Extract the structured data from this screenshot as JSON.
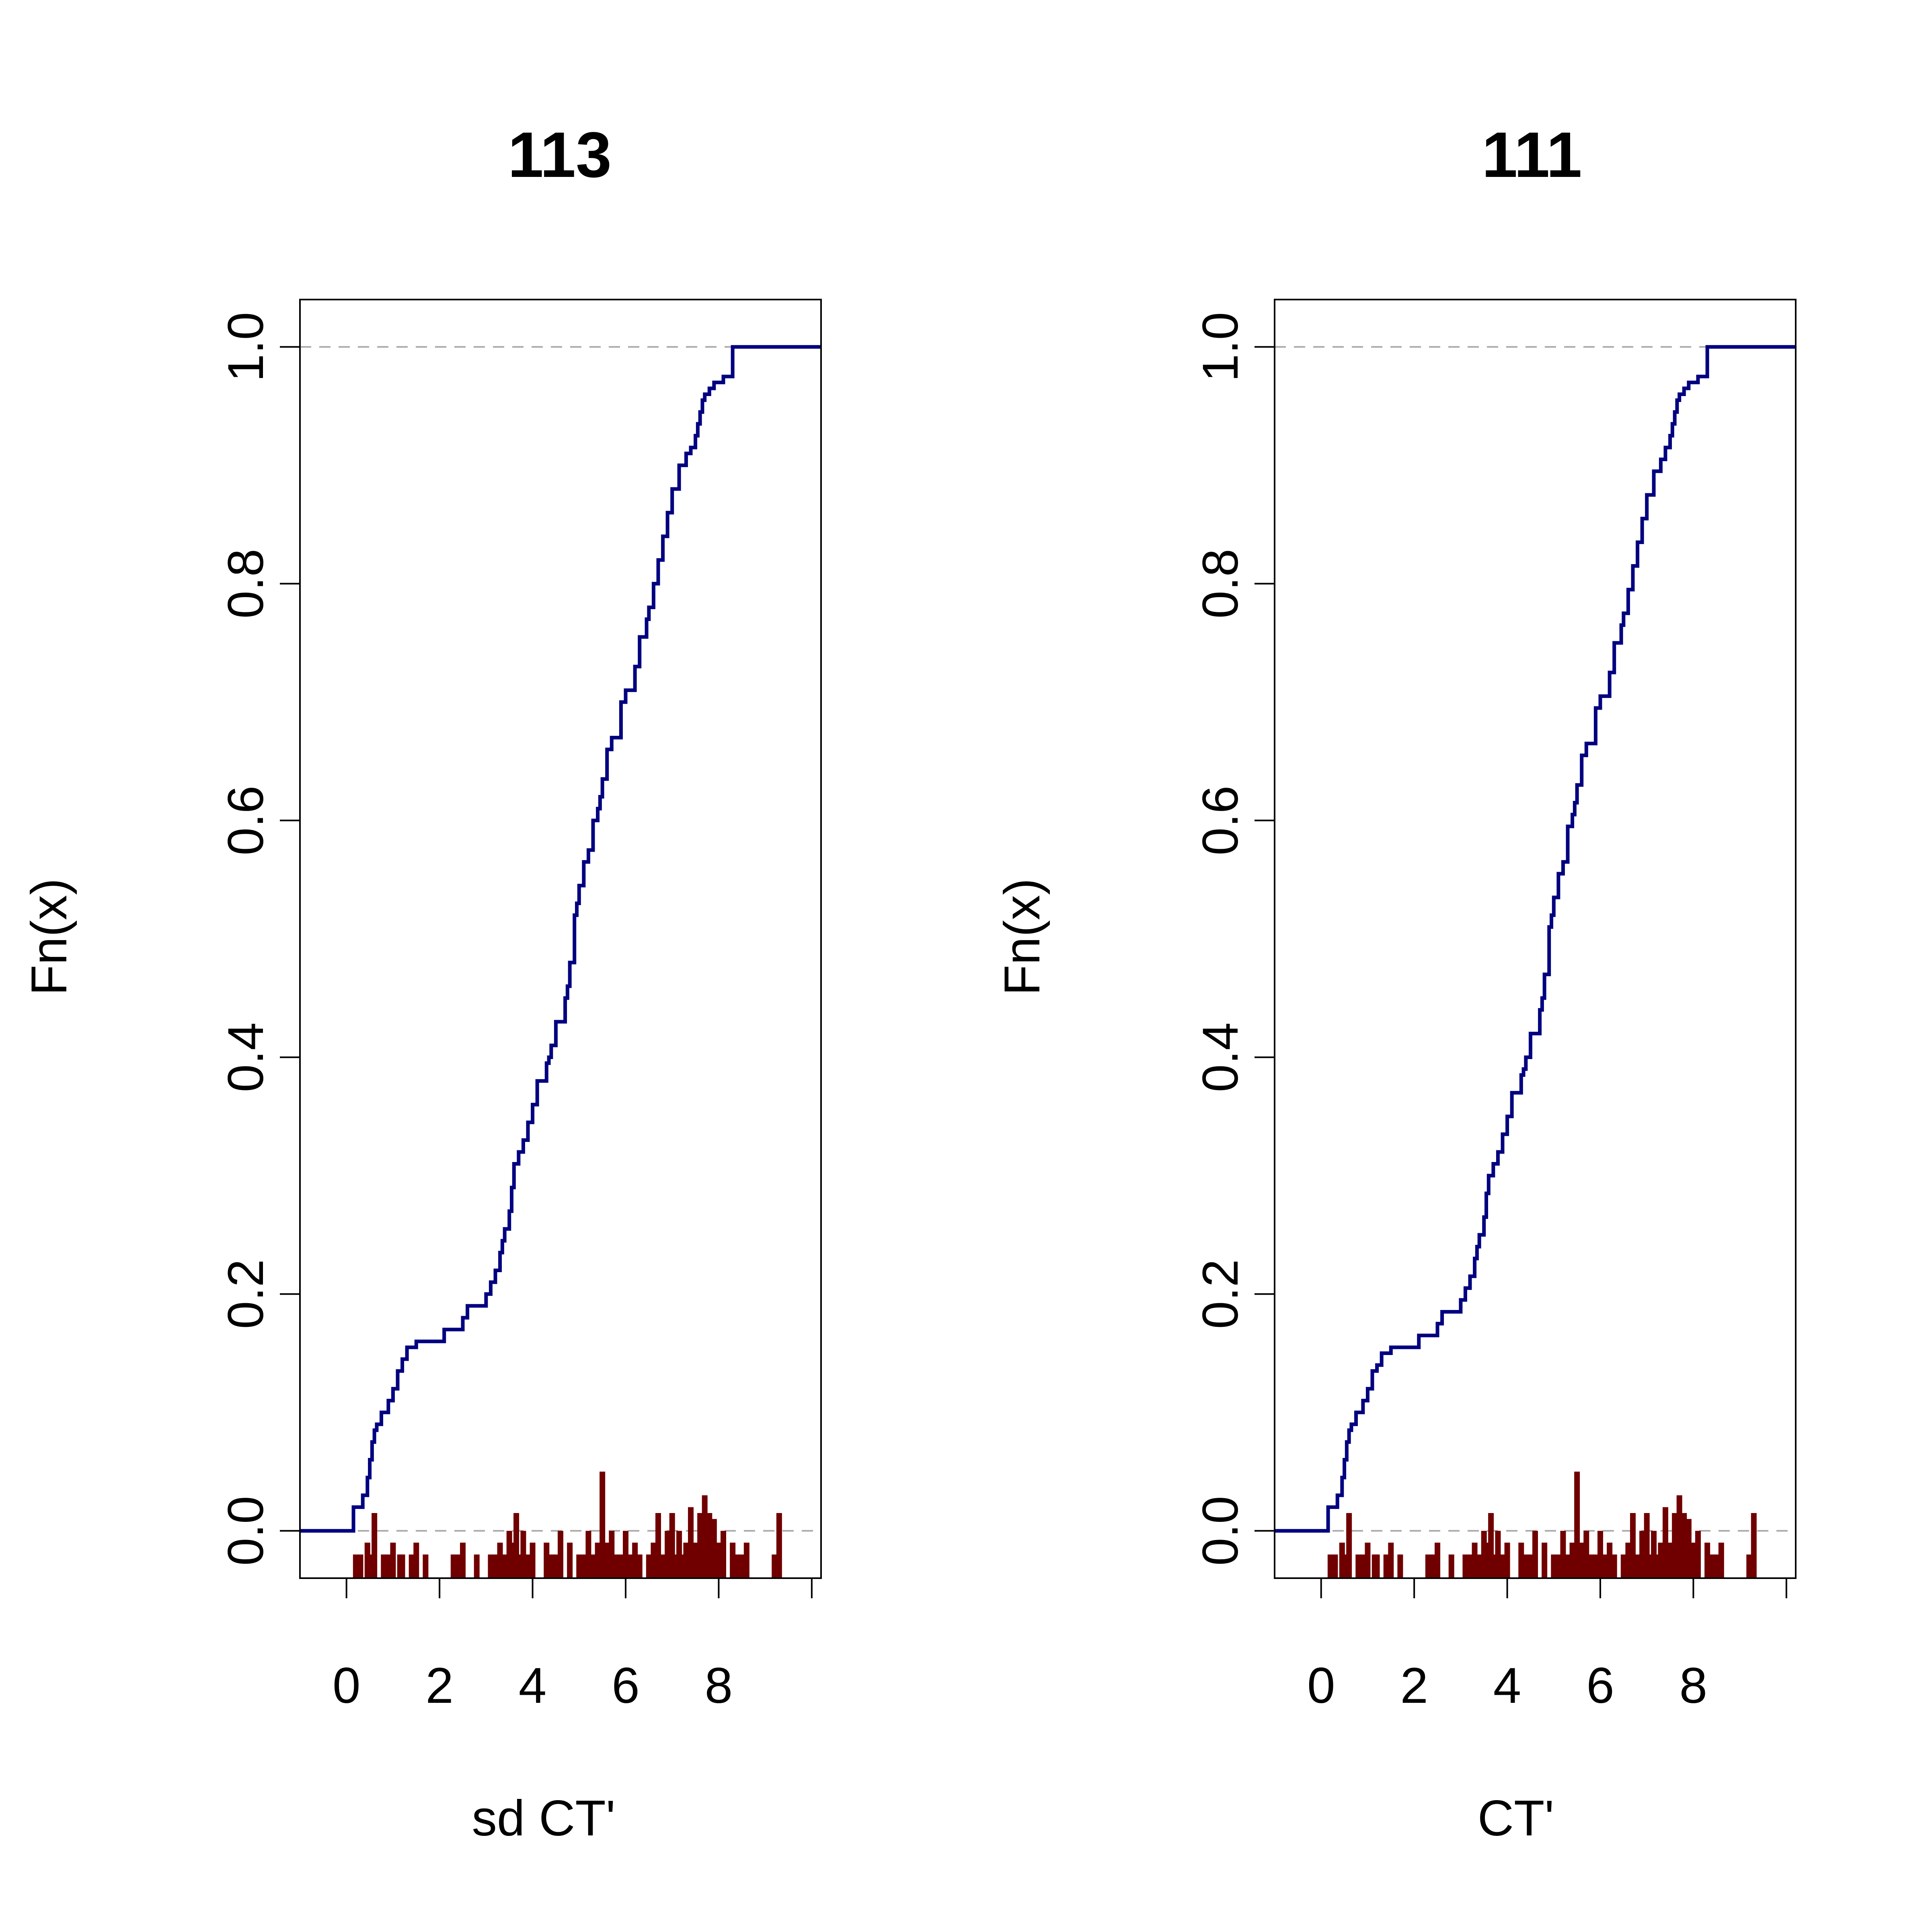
{
  "colors": {
    "ecdf_line": "#000080",
    "rug_bars": "#700000",
    "reference_lines": "#aaaaaa",
    "axes": "#000000",
    "background": "#ffffff"
  },
  "chart_data": [
    {
      "type": "line",
      "subtype": "ecdf-step",
      "title": "113",
      "xlabel": "sd CT'",
      "ylabel": "Fn(x)",
      "xlim": [
        -1.0,
        10.2
      ],
      "ylim": [
        -0.04,
        1.04
      ],
      "x_ticks": [
        0,
        2,
        4,
        6,
        8,
        10
      ],
      "x_tick_labels": [
        "0",
        "2",
        "4",
        "6",
        "8",
        ""
      ],
      "y_ticks": [
        0.0,
        0.2,
        0.4,
        0.6,
        0.8,
        1.0
      ],
      "y_tick_labels": [
        "0.0",
        "0.2",
        "0.4",
        "0.6",
        "0.8",
        "1.0"
      ],
      "reference_lines_y": [
        0.0,
        1.0
      ],
      "grid": false,
      "legend": "none",
      "ecdf": {
        "x": [
          -1.0,
          0.15,
          0.35,
          0.45,
          0.5,
          0.55,
          0.6,
          0.65,
          0.75,
          0.9,
          1.0,
          1.1,
          1.2,
          1.3,
          1.4,
          1.5,
          1.7,
          2.1,
          2.5,
          2.6,
          2.7,
          3.0,
          3.1,
          3.2,
          3.3,
          3.35,
          3.4,
          3.5,
          3.55,
          3.6,
          3.7,
          3.8,
          3.9,
          4.0,
          4.1,
          4.3,
          4.35,
          4.4,
          4.5,
          4.7,
          4.75,
          4.8,
          4.9,
          4.95,
          5.0,
          5.1,
          5.2,
          5.3,
          5.4,
          5.45,
          5.5,
          5.6,
          5.7,
          5.9,
          6.0,
          6.2,
          6.3,
          6.45,
          6.5,
          6.6,
          6.7,
          6.8,
          6.9,
          7.0,
          7.15,
          7.3,
          7.4,
          7.5,
          7.55,
          7.6,
          7.65,
          7.7,
          7.8,
          7.9,
          8.1,
          8.3,
          8.4,
          8.5,
          8.7,
          9.0,
          9.15,
          9.2,
          10.2
        ],
        "y": [
          0.0,
          0.02,
          0.03,
          0.045,
          0.06,
          0.075,
          0.085,
          0.09,
          0.1,
          0.11,
          0.12,
          0.135,
          0.145,
          0.155,
          0.155,
          0.16,
          0.16,
          0.17,
          0.18,
          0.19,
          0.19,
          0.2,
          0.21,
          0.22,
          0.235,
          0.245,
          0.255,
          0.27,
          0.29,
          0.31,
          0.32,
          0.33,
          0.345,
          0.36,
          0.38,
          0.395,
          0.4,
          0.41,
          0.43,
          0.45,
          0.46,
          0.48,
          0.52,
          0.53,
          0.545,
          0.565,
          0.575,
          0.6,
          0.61,
          0.62,
          0.635,
          0.66,
          0.67,
          0.7,
          0.71,
          0.73,
          0.755,
          0.77,
          0.78,
          0.8,
          0.82,
          0.84,
          0.86,
          0.88,
          0.9,
          0.91,
          0.915,
          0.925,
          0.935,
          0.945,
          0.955,
          0.96,
          0.965,
          0.97,
          0.975,
          1.0,
          1.0,
          1.0,
          1.0,
          1.0,
          1.0,
          1.0,
          1.0
        ]
      },
      "rug": {
        "x": [
          0.2,
          0.3,
          0.45,
          0.5,
          0.6,
          0.8,
          0.9,
          1.0,
          1.15,
          1.2,
          1.4,
          1.5,
          1.7,
          2.3,
          2.4,
          2.5,
          2.8,
          3.1,
          3.2,
          3.3,
          3.4,
          3.5,
          3.6,
          3.65,
          3.7,
          3.8,
          3.9,
          4.0,
          4.3,
          4.4,
          4.5,
          4.6,
          4.8,
          5.0,
          5.1,
          5.2,
          5.3,
          5.4,
          5.5,
          5.6,
          5.7,
          5.8,
          5.9,
          6.0,
          6.1,
          6.2,
          6.3,
          6.5,
          6.6,
          6.7,
          6.8,
          6.9,
          7.0,
          7.1,
          7.15,
          7.2,
          7.3,
          7.4,
          7.5,
          7.6,
          7.7,
          7.8,
          7.9,
          8.0,
          8.1,
          8.3,
          8.4,
          8.5,
          8.6,
          9.2,
          9.3
        ],
        "heights": [
          0.02,
          0.02,
          0.03,
          0.02,
          0.055,
          0.02,
          0.02,
          0.03,
          0.02,
          0.02,
          0.02,
          0.03,
          0.02,
          0.02,
          0.02,
          0.03,
          0.02,
          0.02,
          0.02,
          0.03,
          0.02,
          0.04,
          0.03,
          0.055,
          0.02,
          0.04,
          0.02,
          0.03,
          0.03,
          0.02,
          0.02,
          0.04,
          0.03,
          0.02,
          0.02,
          0.04,
          0.02,
          0.03,
          0.09,
          0.03,
          0.04,
          0.02,
          0.02,
          0.04,
          0.02,
          0.03,
          0.02,
          0.02,
          0.03,
          0.055,
          0.02,
          0.04,
          0.055,
          0.02,
          0.04,
          0.02,
          0.03,
          0.06,
          0.03,
          0.055,
          0.07,
          0.055,
          0.05,
          0.03,
          0.04,
          0.03,
          0.02,
          0.02,
          0.03,
          0.02,
          0.055
        ]
      }
    },
    {
      "type": "line",
      "subtype": "ecdf-step",
      "title": "111",
      "xlabel": "CT'",
      "ylabel": "Fn(x)",
      "xlim": [
        -1.0,
        10.2
      ],
      "ylim": [
        -0.04,
        1.04
      ],
      "x_ticks": [
        0,
        2,
        4,
        6,
        8,
        10
      ],
      "x_tick_labels": [
        "0",
        "2",
        "4",
        "6",
        "8",
        ""
      ],
      "y_ticks": [
        0.0,
        0.2,
        0.4,
        0.6,
        0.8,
        1.0
      ],
      "y_tick_labels": [
        "0.0",
        "0.2",
        "0.4",
        "0.6",
        "0.8",
        "1.0"
      ],
      "reference_lines_y": [
        0.0,
        1.0
      ],
      "grid": false,
      "legend": "none",
      "ecdf": {
        "x": [
          -1.0,
          0.15,
          0.35,
          0.45,
          0.5,
          0.55,
          0.6,
          0.65,
          0.75,
          0.9,
          1.0,
          1.1,
          1.2,
          1.3,
          1.4,
          1.5,
          1.7,
          2.1,
          2.5,
          2.6,
          2.7,
          3.0,
          3.1,
          3.2,
          3.3,
          3.35,
          3.4,
          3.5,
          3.55,
          3.6,
          3.7,
          3.8,
          3.9,
          4.0,
          4.1,
          4.3,
          4.35,
          4.4,
          4.5,
          4.7,
          4.75,
          4.8,
          4.9,
          4.95,
          5.0,
          5.1,
          5.2,
          5.3,
          5.4,
          5.45,
          5.5,
          5.6,
          5.7,
          5.9,
          6.0,
          6.2,
          6.3,
          6.45,
          6.5,
          6.6,
          6.7,
          6.8,
          6.9,
          7.0,
          7.15,
          7.3,
          7.4,
          7.5,
          7.55,
          7.6,
          7.65,
          7.7,
          7.8,
          7.9,
          8.1,
          8.3,
          8.4,
          8.5,
          8.7,
          9.0,
          9.15,
          9.2,
          10.2
        ],
        "y": [
          0.0,
          0.02,
          0.03,
          0.045,
          0.06,
          0.075,
          0.085,
          0.09,
          0.1,
          0.11,
          0.12,
          0.135,
          0.14,
          0.15,
          0.15,
          0.155,
          0.155,
          0.165,
          0.175,
          0.185,
          0.185,
          0.195,
          0.205,
          0.215,
          0.23,
          0.24,
          0.25,
          0.265,
          0.285,
          0.3,
          0.31,
          0.32,
          0.335,
          0.35,
          0.37,
          0.385,
          0.39,
          0.4,
          0.42,
          0.44,
          0.45,
          0.47,
          0.51,
          0.52,
          0.535,
          0.555,
          0.565,
          0.595,
          0.605,
          0.615,
          0.63,
          0.655,
          0.665,
          0.695,
          0.705,
          0.725,
          0.75,
          0.765,
          0.775,
          0.795,
          0.815,
          0.835,
          0.855,
          0.875,
          0.895,
          0.905,
          0.915,
          0.925,
          0.935,
          0.945,
          0.955,
          0.96,
          0.965,
          0.97,
          0.975,
          1.0,
          1.0,
          1.0,
          1.0,
          1.0,
          1.0,
          1.0,
          1.0
        ]
      },
      "rug": {
        "x": [
          0.2,
          0.3,
          0.45,
          0.5,
          0.6,
          0.8,
          0.9,
          1.0,
          1.15,
          1.2,
          1.4,
          1.5,
          1.7,
          2.3,
          2.4,
          2.5,
          2.8,
          3.1,
          3.2,
          3.3,
          3.4,
          3.5,
          3.6,
          3.65,
          3.7,
          3.8,
          3.9,
          4.0,
          4.3,
          4.4,
          4.5,
          4.6,
          4.8,
          5.0,
          5.1,
          5.2,
          5.3,
          5.4,
          5.5,
          5.6,
          5.7,
          5.8,
          5.9,
          6.0,
          6.1,
          6.2,
          6.3,
          6.5,
          6.6,
          6.7,
          6.8,
          6.9,
          7.0,
          7.1,
          7.15,
          7.2,
          7.3,
          7.4,
          7.5,
          7.6,
          7.7,
          7.8,
          7.9,
          8.0,
          8.1,
          8.3,
          8.4,
          8.5,
          8.6,
          9.2,
          9.3
        ],
        "heights": [
          0.02,
          0.02,
          0.03,
          0.02,
          0.055,
          0.02,
          0.02,
          0.03,
          0.02,
          0.02,
          0.02,
          0.03,
          0.02,
          0.02,
          0.02,
          0.03,
          0.02,
          0.02,
          0.02,
          0.03,
          0.02,
          0.04,
          0.03,
          0.055,
          0.02,
          0.04,
          0.02,
          0.03,
          0.03,
          0.02,
          0.02,
          0.04,
          0.03,
          0.02,
          0.02,
          0.04,
          0.02,
          0.03,
          0.09,
          0.03,
          0.04,
          0.02,
          0.02,
          0.04,
          0.02,
          0.03,
          0.02,
          0.02,
          0.03,
          0.055,
          0.02,
          0.04,
          0.055,
          0.02,
          0.04,
          0.02,
          0.03,
          0.06,
          0.03,
          0.055,
          0.07,
          0.055,
          0.05,
          0.03,
          0.04,
          0.03,
          0.02,
          0.02,
          0.03,
          0.02,
          0.055
        ]
      }
    }
  ]
}
